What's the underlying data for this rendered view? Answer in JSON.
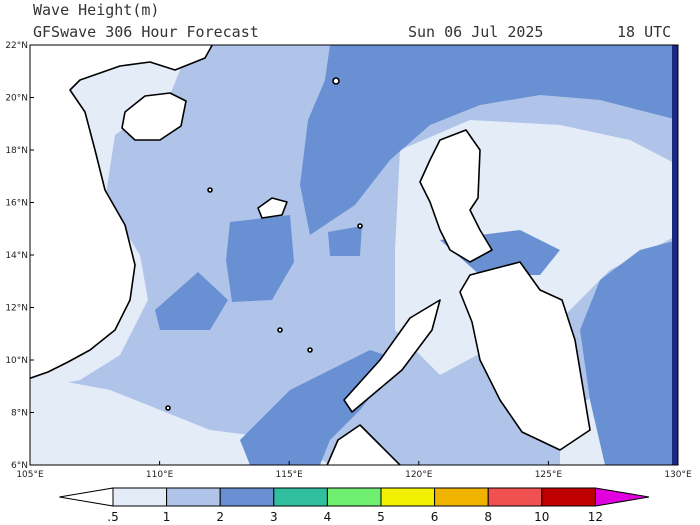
{
  "header": {
    "title": "Wave Height(m)",
    "subtitle": "GFSwave 306 Hour Forecast",
    "date": "Sun 06 Jul 2025",
    "time": "18 UTC"
  },
  "map": {
    "lat_labels": [
      "6°N",
      "8°N",
      "10°N",
      "12°N",
      "14°N",
      "16°N",
      "18°N",
      "20°N",
      "22°N"
    ],
    "lon_labels": [
      "105°E",
      "110°E",
      "115°E",
      "120°E",
      "125°E",
      "130°E"
    ]
  },
  "colorbar": {
    "labels": [
      ".5",
      "1",
      "2",
      "3",
      "4",
      "5",
      "6",
      "8",
      "10",
      "12"
    ],
    "colors": [
      "#ffffff",
      "#e4ecf8",
      "#b0c4ea",
      "#6a90d4",
      "#30c0a0",
      "#70ee70",
      "#f0f000",
      "#f0b400",
      "#f05050",
      "#c00000",
      "#e000e0"
    ]
  }
}
